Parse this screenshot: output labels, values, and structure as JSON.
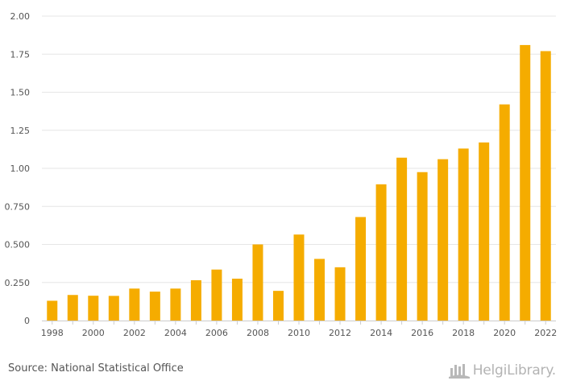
{
  "chart_data": {
    "type": "bar",
    "categories": [
      "1998",
      "1999",
      "2000",
      "2001",
      "2002",
      "2003",
      "2004",
      "2005",
      "2006",
      "2007",
      "2008",
      "2009",
      "2010",
      "2011",
      "2012",
      "2013",
      "2014",
      "2015",
      "2016",
      "2017",
      "2018",
      "2019",
      "2020",
      "2021",
      "2022"
    ],
    "values": [
      0.13,
      0.168,
      0.163,
      0.162,
      0.21,
      0.19,
      0.21,
      0.265,
      0.335,
      0.275,
      0.5,
      0.195,
      0.565,
      0.405,
      0.35,
      0.68,
      0.895,
      1.07,
      0.975,
      1.06,
      1.13,
      1.17,
      1.42,
      1.81,
      1.77
    ],
    "x_tick_labels": [
      "1998",
      "2000",
      "2002",
      "2004",
      "2006",
      "2008",
      "2010",
      "2012",
      "2014",
      "2016",
      "2018",
      "2020",
      "2022"
    ],
    "y_ticks": [
      "0",
      "0.250",
      "0.500",
      "0.750",
      "1.00",
      "1.25",
      "1.50",
      "1.75",
      "2.00"
    ],
    "ylim": [
      0,
      2.0
    ],
    "grid": true,
    "legend": "none",
    "bar_color": "#f5ac00",
    "grid_color": "#e6e6e6",
    "axis_color": "#cccccc",
    "tick_text_color": "#555555"
  },
  "footer": {
    "source": "Source: National Statistical Office",
    "logo_text": "HelgiLibrary.",
    "logo_icon": "library-building-icon"
  }
}
